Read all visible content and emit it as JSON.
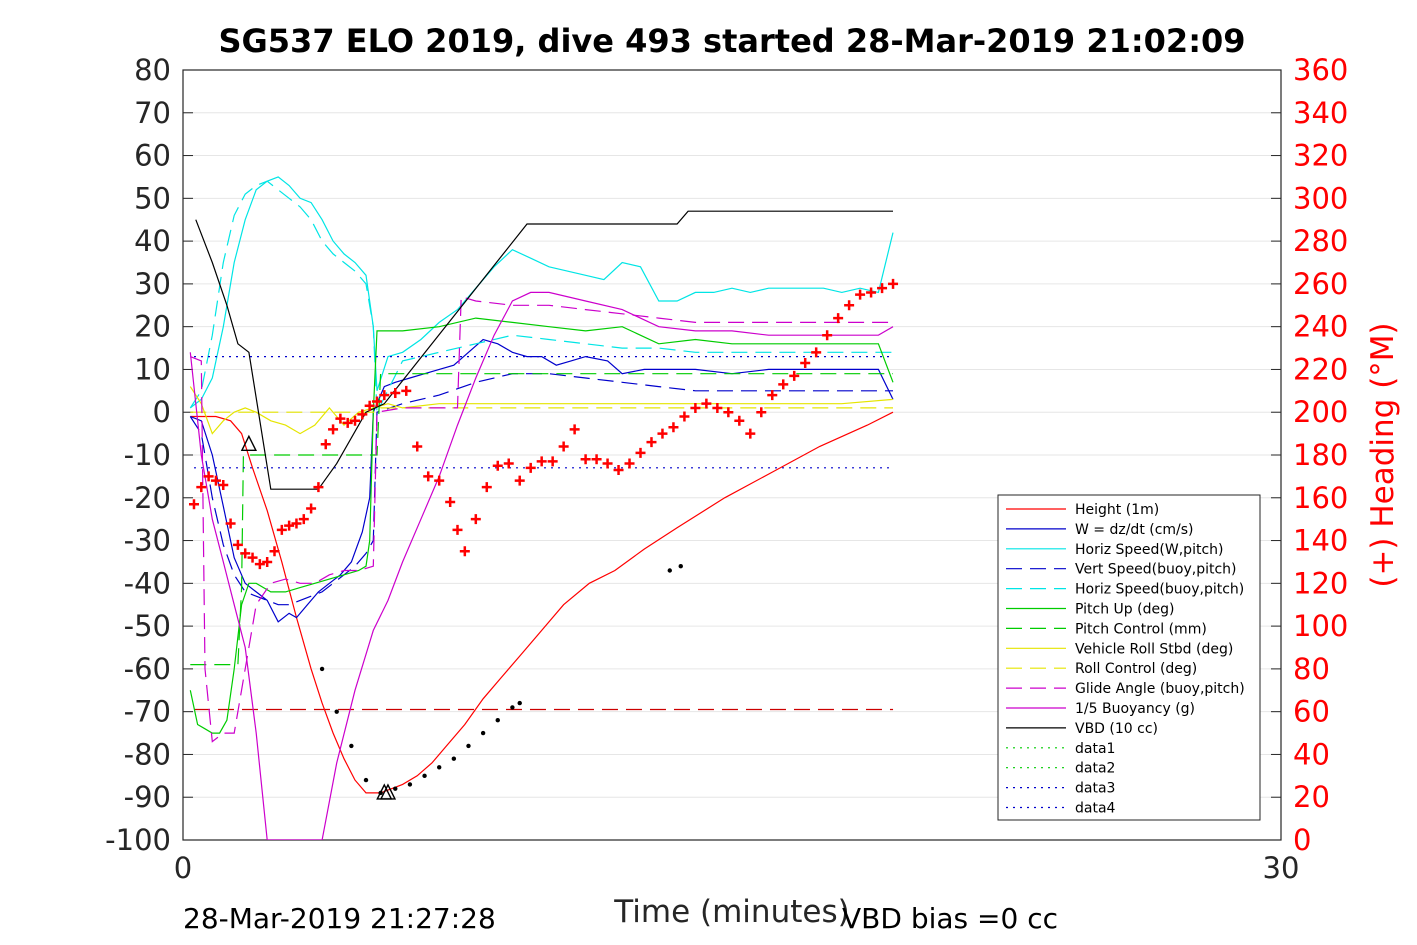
{
  "chart_data": {
    "type": "line",
    "title": "SG537 ELO 2019, dive 493 started 28-Mar-2019 21:02:09",
    "xlabel": "Time (minutes)",
    "ylabel": "",
    "y2label": "(+) Heading (°M)",
    "xlim": [
      0,
      30
    ],
    "ylim": [
      -100,
      80
    ],
    "y2lim": [
      0,
      360
    ],
    "x_ticks": [
      "0",
      "30"
    ],
    "y_ticks": [
      "80",
      "70",
      "60",
      "50",
      "40",
      "30",
      "20",
      "10",
      "0",
      "-10",
      "-20",
      "-30",
      "-40",
      "-50",
      "-60",
      "-70",
      "-80",
      "-90",
      "-100"
    ],
    "y2_ticks": [
      "360",
      "340",
      "320",
      "300",
      "280",
      "260",
      "240",
      "220",
      "200",
      "180",
      "160",
      "140",
      "120",
      "100",
      "80",
      "60",
      "40",
      "20",
      "0"
    ],
    "grid": "horizontal",
    "legend_position": "bottom-right",
    "series": [
      {
        "name": "Height (1m)",
        "color": "#ff0000",
        "style": "solid",
        "axis": "left",
        "x": [
          0.2,
          0.5,
          0.9,
          1.3,
          1.6,
          1.9,
          2.3,
          2.7,
          3.1,
          3.5,
          3.8,
          4.1,
          4.4,
          4.7,
          5.0,
          5.4,
          5.7,
          6.0,
          6.4,
          6.8,
          7.2,
          7.7,
          8.2,
          8.7,
          9.2,
          9.8,
          10.4,
          11.1,
          11.8,
          12.6,
          13.5,
          14.8,
          16.1,
          17.4,
          18.7,
          19.4
        ],
        "y": [
          -1,
          -1,
          -1,
          -2,
          -5,
          -13,
          -23,
          -35,
          -48,
          -60,
          -68,
          -75,
          -81,
          -86,
          -89,
          -89,
          -88,
          -87,
          -85,
          -82,
          -78,
          -73,
          -67,
          -62,
          -57,
          -51,
          -45,
          -40,
          -37,
          -32,
          -27,
          -20,
          -14,
          -8,
          -3,
          0
        ]
      },
      {
        "name": "W = dz/dt (cm/s)",
        "color": "#0000cc",
        "style": "solid",
        "axis": "left",
        "x": [
          0.2,
          0.5,
          0.8,
          1.1,
          1.4,
          1.7,
          2.0,
          2.3,
          2.6,
          2.9,
          3.1,
          3.4,
          3.7,
          4.0,
          4.3,
          4.6,
          4.9,
          5.1,
          5.2,
          5.5,
          5.8,
          6.2,
          6.6,
          7.0,
          7.4,
          7.8,
          8.2,
          8.6,
          9.0,
          9.4,
          9.8,
          10.2,
          10.6,
          11.0,
          11.6,
          12.0,
          12.6,
          13.2,
          14.0,
          15.0,
          16.0,
          17.0,
          18.0,
          19.0,
          19.4
        ],
        "y": [
          -1,
          -2,
          -10,
          -22,
          -34,
          -40,
          -42,
          -44,
          -49,
          -47,
          -48,
          -45,
          -42,
          -40,
          -38,
          -35,
          -28,
          -20,
          0,
          6,
          7,
          8,
          9,
          10,
          11,
          14,
          17,
          16,
          14,
          13,
          13,
          11,
          12,
          13,
          12,
          9,
          10,
          10,
          10,
          9,
          10,
          10,
          10,
          10,
          3
        ]
      },
      {
        "name": "Horiz Speed(W,pitch)",
        "color": "#00e5e5",
        "style": "solid",
        "axis": "left",
        "x": [
          0.2,
          0.5,
          0.8,
          1.1,
          1.4,
          1.7,
          2.0,
          2.3,
          2.6,
          2.9,
          3.2,
          3.5,
          3.8,
          4.1,
          4.4,
          4.7,
          5.0,
          5.2,
          5.3,
          5.6,
          6.0,
          6.5,
          7.0,
          7.5,
          8.0,
          8.5,
          9.0,
          9.5,
          10.0,
          10.5,
          11.0,
          11.5,
          12.0,
          12.5,
          13.0,
          13.5,
          14.0,
          14.5,
          15.0,
          15.5,
          16.0,
          16.5,
          17.0,
          17.5,
          18.0,
          18.5,
          19.0,
          19.4
        ],
        "y": [
          1,
          3,
          8,
          20,
          35,
          45,
          52,
          54,
          55,
          53,
          50,
          49,
          45,
          40,
          37,
          35,
          32,
          20,
          5,
          13,
          14,
          17,
          21,
          24,
          29,
          34,
          38,
          36,
          34,
          33,
          32,
          31,
          35,
          34,
          26,
          26,
          28,
          28,
          29,
          28,
          29,
          29,
          29,
          29,
          28,
          29,
          28,
          42
        ]
      },
      {
        "name": "Vert Speed(buoy,pitch)",
        "color": "#0000cc",
        "style": "dashed",
        "axis": "left",
        "x": [
          0.2,
          0.5,
          0.8,
          1.1,
          1.4,
          1.7,
          2.0,
          2.3,
          2.6,
          2.9,
          3.2,
          3.5,
          3.8,
          4.1,
          4.4,
          4.7,
          5.0,
          5.2,
          5.3,
          6.0,
          7.0,
          8.0,
          9.0,
          10.0,
          11.0,
          12.0,
          13.0,
          14.0,
          15.0,
          16.0,
          17.0,
          18.0,
          19.0,
          19.4
        ],
        "y": [
          -1,
          -5,
          -20,
          -31,
          -38,
          -42,
          -43,
          -44,
          -45,
          -45,
          -44,
          -43,
          -42,
          -40,
          -38,
          -36,
          -33,
          -30,
          0,
          2,
          4,
          7,
          9,
          9,
          8,
          7,
          6,
          5,
          5,
          5,
          5,
          5,
          5,
          5
        ]
      },
      {
        "name": "Horiz Speed(buoy,pitch)",
        "color": "#00e5e5",
        "style": "dashed",
        "axis": "left",
        "x": [
          0.2,
          0.5,
          0.8,
          1.1,
          1.4,
          1.7,
          2.0,
          2.3,
          2.6,
          2.9,
          3.2,
          3.5,
          3.8,
          4.1,
          4.4,
          4.7,
          5.0,
          5.2,
          5.3,
          6.0,
          7.0,
          8.0,
          9.0,
          10.0,
          11.0,
          12.0,
          13.0,
          14.0,
          15.0,
          16.0,
          17.0,
          18.0,
          19.0,
          19.4
        ],
        "y": [
          1,
          5,
          18,
          35,
          46,
          51,
          53,
          54,
          52,
          50,
          48,
          45,
          40,
          37,
          35,
          33,
          30,
          20,
          0,
          12,
          14,
          16,
          18,
          17,
          16,
          15,
          15,
          14,
          14,
          14,
          14,
          14,
          14,
          14
        ]
      },
      {
        "name": "Pitch Up (deg)",
        "color": "#00cc00",
        "style": "solid",
        "axis": "left",
        "x": [
          0.2,
          0.4,
          0.6,
          0.8,
          1.0,
          1.2,
          1.4,
          1.6,
          1.8,
          2.0,
          2.4,
          2.8,
          3.2,
          3.6,
          4.0,
          4.4,
          4.8,
          5.0,
          5.1,
          5.2,
          5.3,
          5.5,
          6.0,
          7.0,
          8.0,
          9.0,
          10.0,
          11.0,
          12.0,
          13.0,
          14.0,
          15.0,
          16.0,
          17.0,
          18.0,
          19.0,
          19.4
        ],
        "y": [
          -65,
          -73,
          -74,
          -75,
          -75,
          -72,
          -60,
          -45,
          -40,
          -40,
          -42,
          -42,
          -41,
          -40,
          -39,
          -38,
          -37,
          -36,
          -30,
          0,
          19,
          19,
          19,
          20,
          22,
          21,
          20,
          19,
          20,
          16,
          17,
          16,
          16,
          16,
          16,
          16,
          7
        ]
      },
      {
        "name": "Pitch Control (mm)",
        "color": "#00cc00",
        "style": "dashed",
        "axis": "left",
        "x": [
          0.2,
          1.5,
          1.6,
          1.65,
          5.3,
          5.4,
          19.4
        ],
        "y": [
          -59,
          -59,
          -41,
          -10,
          -10,
          9,
          9
        ]
      },
      {
        "name": "Vehicle Roll Stbd (deg)",
        "color": "#e5e500",
        "style": "solid",
        "axis": "left",
        "x": [
          0.2,
          0.5,
          0.8,
          1.1,
          1.4,
          1.7,
          2.0,
          2.4,
          2.8,
          3.2,
          3.6,
          4.0,
          4.4,
          4.8,
          5.2,
          5.6,
          6.0,
          7.0,
          8.0,
          10.0,
          12.0,
          14.0,
          16.0,
          18.0,
          19.4
        ],
        "y": [
          6,
          2,
          -5,
          -2,
          0,
          1,
          0,
          -2,
          -3,
          -5,
          -3,
          1,
          -3,
          0,
          1,
          2,
          1,
          2,
          2,
          2,
          2,
          2,
          2,
          2,
          3
        ]
      },
      {
        "name": "Roll Control (deg)",
        "color": "#e5e500",
        "style": "dashed",
        "axis": "left",
        "x": [
          0.2,
          5.3,
          5.4,
          19.4
        ],
        "y": [
          0,
          0,
          1,
          1
        ]
      },
      {
        "name": "Glide Angle (buoy,pitch)",
        "color": "#cc00cc",
        "style": "dashed",
        "axis": "left",
        "x": [
          0.2,
          0.5,
          0.6,
          0.8,
          1.1,
          1.4,
          1.7,
          2.0,
          2.4,
          2.8,
          3.2,
          3.6,
          4.0,
          4.4,
          4.8,
          5.2,
          5.3,
          6.0,
          7.0,
          7.5,
          7.6,
          8.0,
          9.0,
          10.0,
          11.0,
          12.0,
          13.0,
          14.0,
          15.0,
          16.0,
          17.0,
          18.0,
          19.0,
          19.4
        ],
        "y": [
          13,
          12,
          -60,
          -77,
          -75,
          -75,
          -60,
          -45,
          -40,
          -39,
          -40,
          -40,
          -38,
          -37,
          -37,
          -36,
          0,
          1,
          1,
          1,
          27,
          26,
          25,
          25,
          24,
          23,
          22,
          21,
          21,
          21,
          21,
          21,
          21,
          21
        ]
      },
      {
        "name": "1/5 Buoyancy (g)",
        "color": "#cc00cc",
        "style": "solid",
        "axis": "left",
        "x": [
          0.2,
          0.5,
          0.8,
          1.1,
          1.4,
          1.7,
          2.0,
          2.3,
          3.8,
          4.2,
          4.7,
          5.2,
          5.6,
          6.0,
          6.5,
          7.0,
          7.5,
          8.0,
          8.5,
          9.0,
          9.5,
          10.0,
          11.0,
          12.0,
          13.0,
          14.0,
          15.0,
          16.0,
          17.0,
          18.0,
          19.0,
          19.4
        ],
        "y": [
          14,
          -10,
          -25,
          -35,
          -45,
          -55,
          -75,
          -100,
          -100,
          -82,
          -65,
          -51,
          -44,
          -35,
          -25,
          -15,
          -3,
          8,
          18,
          26,
          28,
          28,
          26,
          24,
          20,
          19,
          19,
          18,
          18,
          18,
          18,
          20
        ]
      },
      {
        "name": "VBD (10 cc)",
        "color": "#000000",
        "style": "solid",
        "axis": "left",
        "x": [
          0.35,
          0.8,
          1.2,
          1.5,
          1.8,
          2.4,
          3.7,
          4.2,
          5.0,
          5.5,
          9.4,
          13.5,
          13.8,
          19.4
        ],
        "y": [
          45,
          35,
          25,
          16,
          14,
          -18,
          -18,
          -12,
          0,
          2,
          44,
          44,
          47,
          47
        ]
      },
      {
        "name": "data1",
        "color": "#00cc00",
        "style": "dotted",
        "axis": "left",
        "x": [],
        "y": []
      },
      {
        "name": "data2",
        "color": "#00cc00",
        "style": "dotted",
        "axis": "left",
        "x": [],
        "y": []
      },
      {
        "name": "data3",
        "color": "#0000cc",
        "style": "dotted",
        "axis": "left",
        "x": [
          0.3,
          19.4
        ],
        "y": [
          13,
          13
        ]
      },
      {
        "name": "data4",
        "color": "#0000cc",
        "style": "dotted",
        "axis": "left",
        "x": [
          0.3,
          19.4
        ],
        "y": [
          -13,
          -13
        ]
      }
    ],
    "reference_lines": [
      {
        "type": "horizontal",
        "axis": "left",
        "y": -69.5,
        "x": [
          0.3,
          19.4
        ],
        "color": "#cc0000",
        "style": "dashed"
      }
    ],
    "heading_markers": {
      "name": "(+) Heading (°M)",
      "axis": "right",
      "marker": "+",
      "color": "#ff0000",
      "x": [
        0.3,
        0.5,
        0.7,
        0.9,
        1.1,
        1.3,
        1.5,
        1.7,
        1.9,
        2.1,
        2.3,
        2.5,
        2.7,
        2.9,
        3.1,
        3.3,
        3.5,
        3.7,
        3.9,
        4.1,
        4.3,
        4.5,
        4.7,
        4.9,
        5.1,
        5.3,
        5.5,
        5.8,
        6.1,
        6.4,
        6.7,
        7.0,
        7.3,
        7.5,
        7.7,
        8.0,
        8.3,
        8.6,
        8.9,
        9.2,
        9.5,
        9.8,
        10.1,
        10.4,
        10.7,
        11.0,
        11.3,
        11.6,
        11.9,
        12.2,
        12.5,
        12.8,
        13.1,
        13.4,
        13.7,
        14.0,
        14.3,
        14.6,
        14.9,
        15.2,
        15.5,
        15.8,
        16.1,
        16.4,
        16.7,
        17.0,
        17.3,
        17.6,
        17.9,
        18.2,
        18.5,
        18.8,
        19.1,
        19.4
      ],
      "y": [
        157,
        165,
        170,
        168,
        166,
        148,
        138,
        134,
        132,
        129,
        130,
        135,
        145,
        147,
        148,
        150,
        155,
        165,
        185,
        192,
        197,
        195,
        196,
        199,
        203,
        205,
        208,
        209,
        210,
        184,
        170,
        168,
        158,
        145,
        135,
        150,
        165,
        175,
        176,
        168,
        174,
        177,
        177,
        184,
        192,
        178,
        178,
        176,
        173,
        176,
        181,
        186,
        190,
        193,
        198,
        202,
        204,
        202,
        200,
        196,
        190,
        200,
        208,
        213,
        217,
        223,
        228,
        236,
        244,
        250,
        255,
        256,
        258,
        260
      ]
    },
    "depth_markers": {
      "color": "#000000",
      "marker": "dot",
      "axis": "left",
      "x": [
        3.8,
        4.2,
        4.6,
        5.0,
        5.4,
        5.8,
        6.2,
        6.6,
        7.0,
        7.4,
        7.8,
        8.2,
        8.6,
        9.0,
        9.2,
        13.3,
        13.6
      ],
      "y": [
        -60,
        -70,
        -78,
        -86,
        -89,
        -88,
        -87,
        -85,
        -83,
        -81,
        -78,
        -75,
        -72,
        -69,
        -68,
        -37,
        -36
      ]
    },
    "triangle_markers": {
      "axis": "left",
      "x": [
        1.8,
        5.5,
        5.6
      ],
      "y": [
        -7.5,
        -89,
        -89
      ]
    },
    "footer_left": "28-Mar-2019 21:27:28",
    "footer_right": "VBD bias =0 cc"
  }
}
